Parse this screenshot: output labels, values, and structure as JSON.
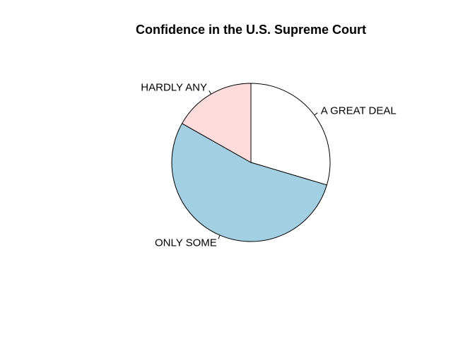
{
  "chart_data": {
    "type": "pie",
    "title": "Confidence in the U.S. Supreme Court",
    "start_angle_deg": 90,
    "direction": "clockwise",
    "slices": [
      {
        "label": "A GREAT DEAL",
        "value": 29.6,
        "color": "#ffffff"
      },
      {
        "label": "ONLY SOME",
        "value": 53.6,
        "color": "#a2cfe1"
      },
      {
        "label": "HARDLY ANY",
        "value": 16.8,
        "color": "#ffdcdc"
      }
    ]
  }
}
